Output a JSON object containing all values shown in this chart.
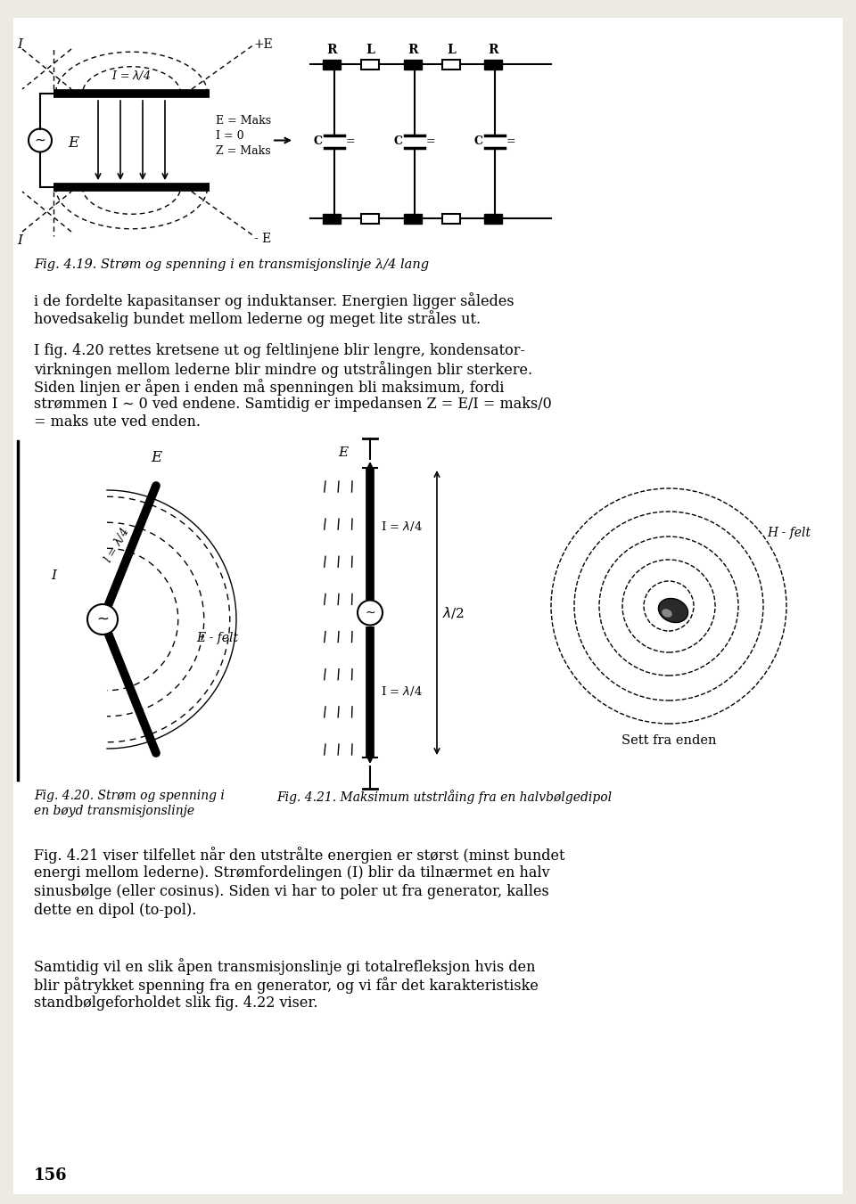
{
  "bg_color": "#ede9e3",
  "fig419_caption": "Fig. 4.19. Strøm og spenning i en transmisjonslinje λ/4 lang",
  "fig420_caption_line1": "Fig. 4.20. Strøm og spenning i",
  "fig420_caption_line2": "en bøyd transmisjonslinje",
  "fig421_caption": "Fig. 4.21. Maksimum utstrlåing fra en halvbølgedipol",
  "para1_line1": "i de fordelte kapasitanser og induktanser. Energien ligger således",
  "para1_line2": "hovedsakelig bundet mellom lederne og meget lite stråles ut.",
  "para2_line1": "I fig. 4.20 rettes kretsene ut og feltlinjene blir lengre, kondensator-",
  "para2_line2": "virkningen mellom lederne blir mindre og utstrålingen blir sterkere.",
  "para2_line3": "Siden linjen er åpen i enden må spenningen bli maksimum, fordi",
  "para2_line4": "strømmen I ∼ 0 ved endene. Samtidig er impedansen Z = E/I = maks/0",
  "para2_line5": "= maks ute ved enden.",
  "para3_line1": "Fig. 4.21 viser tilfellet når den utstrålte energien er størst (minst bundet",
  "para3_line2": "energi mellom lederne). Strømfordelingen (I) blir da tilnærmet en halv",
  "para3_line3": "sinusbølge (eller cosinus). Siden vi har to poler ut fra generator, kalles",
  "para3_line4": "dette en dipol (to-pol).",
  "para4_line1": "Samtidig vil en slik åpen transmisjonslinje gi totalrefleksjon hvis den",
  "para4_line2": "blir påtrykket spenning fra en generator, og vi får det karakteristiske",
  "para4_line3": "standbølgeforholdet slik fig. 4.22 viser.",
  "page_number": "156"
}
